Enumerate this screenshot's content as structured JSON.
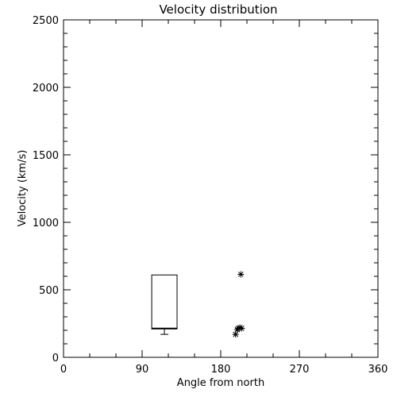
{
  "chart_data": {
    "type": "box",
    "title": "Velocity distribution",
    "xlabel": "Angle from north",
    "ylabel": "Velocity (km/s)",
    "xlim": [
      0,
      360
    ],
    "ylim": [
      0,
      2500
    ],
    "xticks": [
      "0",
      "90",
      "180",
      "270",
      "360"
    ],
    "yticks": [
      "0",
      "500",
      "1000",
      "1500",
      "2000",
      "2500"
    ],
    "grid": false,
    "boxes": [
      {
        "x_start": 101,
        "x_end": 130,
        "q1": 210,
        "median": 215,
        "q3": 610,
        "whisker_low": 170,
        "whisker_high": 610
      }
    ],
    "outliers": [
      {
        "x": 197,
        "y": 170
      },
      {
        "x": 199,
        "y": 205
      },
      {
        "x": 200,
        "y": 215
      },
      {
        "x": 202,
        "y": 220
      },
      {
        "x": 204,
        "y": 215
      },
      {
        "x": 203,
        "y": 615
      }
    ]
  }
}
